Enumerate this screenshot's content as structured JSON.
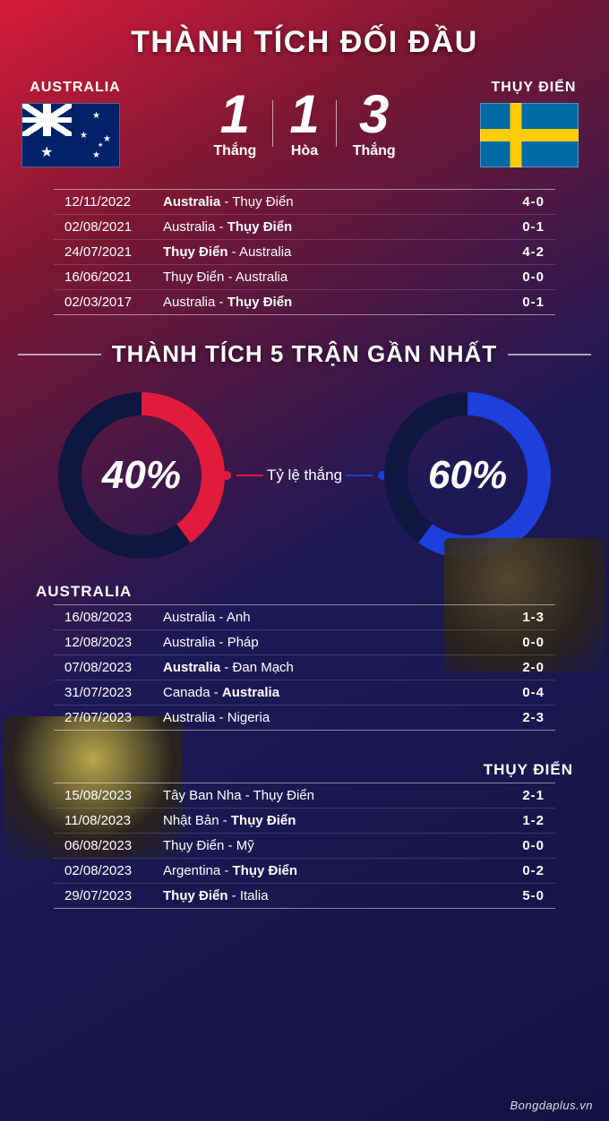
{
  "title_h2h": "THÀNH TÍCH ĐỐI ĐẦU",
  "team_a": {
    "name": "AUSTRALIA"
  },
  "team_b": {
    "name": "THỤY ĐIỂN"
  },
  "h2h_stats": {
    "a_wins": {
      "value": "1",
      "label": "Thắng"
    },
    "draws": {
      "value": "1",
      "label": "Hòa"
    },
    "b_wins": {
      "value": "3",
      "label": "Thắng"
    }
  },
  "h2h_matches": [
    {
      "date": "12/11/2022",
      "home": "Australia",
      "away": "Thụy Điển",
      "home_bold": true,
      "away_bold": false,
      "score": "4-0"
    },
    {
      "date": "02/08/2021",
      "home": "Australia",
      "away": "Thụy Điển",
      "home_bold": false,
      "away_bold": true,
      "score": "0-1"
    },
    {
      "date": "24/07/2021",
      "home": "Thụy Điển",
      "away": "Australia",
      "home_bold": true,
      "away_bold": false,
      "score": "4-2"
    },
    {
      "date": "16/06/2021",
      "home": "Thụy Điển",
      "away": "Australia",
      "home_bold": false,
      "away_bold": false,
      "score": "0-0"
    },
    {
      "date": "02/03/2017",
      "home": "Australia",
      "away": "Thụy Điển",
      "home_bold": false,
      "away_bold": true,
      "score": "0-1"
    }
  ],
  "title_form": "THÀNH TÍCH 5 TRẬN GẦN NHẤT",
  "winrate_label": "Tỷ lệ thắng",
  "donut_a": {
    "pct_text": "40%",
    "value": 40,
    "ring_color": "#e21b3c",
    "bg_ring_color": "#0f1640",
    "stroke_width": 26
  },
  "donut_b": {
    "pct_text": "60%",
    "value": 60,
    "ring_color": "#1d3fdc",
    "bg_ring_color": "#0f1640",
    "stroke_width": 26
  },
  "form_a": {
    "heading": "AUSTRALIA",
    "matches": [
      {
        "date": "16/08/2023",
        "home": "Australia",
        "away": "Anh",
        "home_bold": false,
        "away_bold": false,
        "score": "1-3"
      },
      {
        "date": "12/08/2023",
        "home": "Australia",
        "away": "Pháp",
        "home_bold": false,
        "away_bold": false,
        "score": "0-0"
      },
      {
        "date": "07/08/2023",
        "home": "Australia",
        "away": "Đan Mạch",
        "home_bold": true,
        "away_bold": false,
        "score": "2-0"
      },
      {
        "date": "31/07/2023",
        "home": "Canada",
        "away": "Australia",
        "home_bold": false,
        "away_bold": true,
        "score": "0-4"
      },
      {
        "date": "27/07/2023",
        "home": "Australia",
        "away": "Nigeria",
        "home_bold": false,
        "away_bold": false,
        "score": "2-3"
      }
    ]
  },
  "form_b": {
    "heading": "THỤY ĐIỂN",
    "matches": [
      {
        "date": "15/08/2023",
        "home": "Tây Ban Nha",
        "away": "Thụy Điển",
        "home_bold": false,
        "away_bold": false,
        "score": "2-1"
      },
      {
        "date": "11/08/2023",
        "home": "Nhật Bản",
        "away": "Thụy Điển",
        "home_bold": false,
        "away_bold": true,
        "score": "1-2"
      },
      {
        "date": "06/08/2023",
        "home": "Thụy Điển",
        "away": "Mỹ",
        "home_bold": false,
        "away_bold": false,
        "score": "0-0"
      },
      {
        "date": "02/08/2023",
        "home": "Argentina",
        "away": "Thụy Điển",
        "home_bold": false,
        "away_bold": true,
        "score": "0-2"
      },
      {
        "date": "29/07/2023",
        "home": "Thụy Điển",
        "away": "Italia",
        "home_bold": true,
        "away_bold": false,
        "score": "5-0"
      }
    ]
  },
  "watermark": "Bongdaplus.vn"
}
